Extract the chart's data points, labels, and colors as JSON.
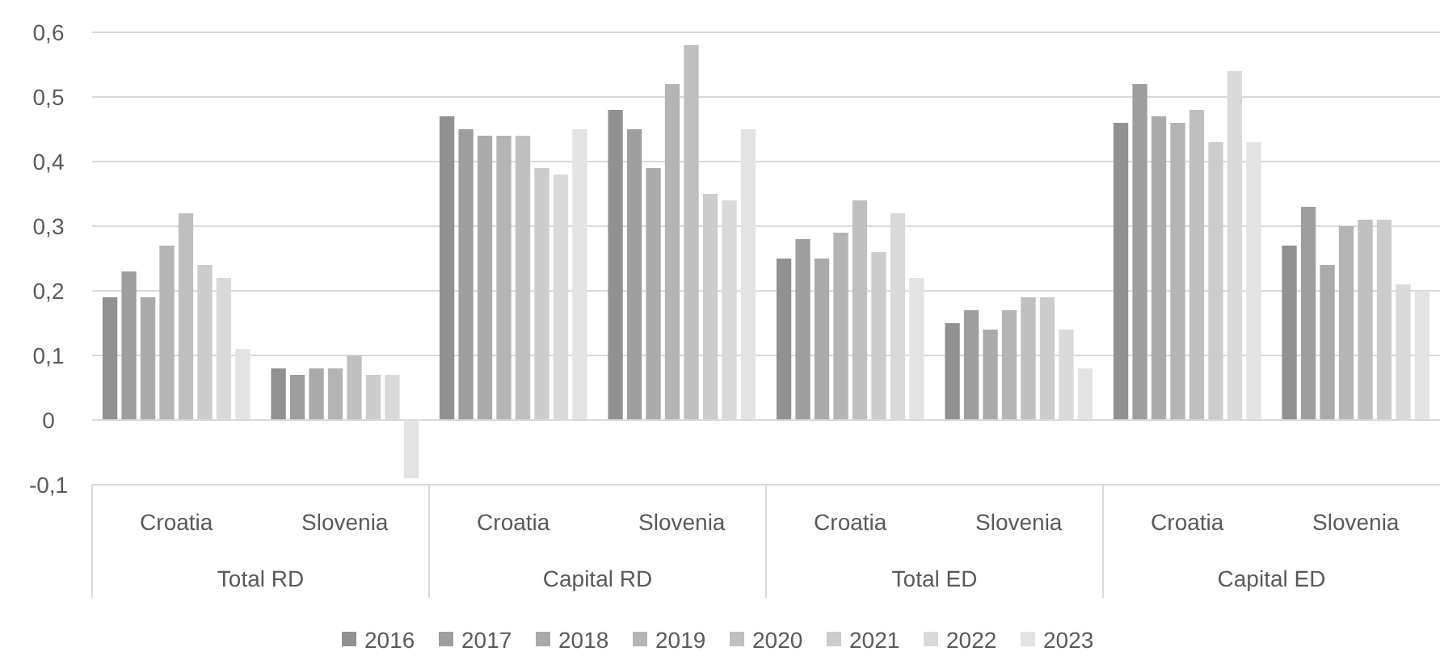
{
  "chart_data": {
    "type": "bar",
    "categories": [
      "Croatia",
      "Slovenia",
      "Croatia",
      "Slovenia",
      "Croatia",
      "Slovenia",
      "Croatia",
      "Slovenia"
    ],
    "annotations": [
      "Total RD",
      "Capital RD",
      "Total ED",
      "Capital ED"
    ],
    "ylim": [
      -0.1,
      0.6
    ],
    "yticks": [
      {
        "value": -0.1,
        "label": "-0,1"
      },
      {
        "value": 0,
        "label": "0"
      },
      {
        "value": 0.1,
        "label": "0,1"
      },
      {
        "value": 0.2,
        "label": "0,2"
      },
      {
        "value": 0.3,
        "label": "0,3"
      },
      {
        "value": 0.4,
        "label": "0,4"
      },
      {
        "value": 0.5,
        "label": "0,5"
      },
      {
        "value": 0.6,
        "label": "0,6"
      }
    ],
    "grid": "y",
    "legend": "bottom",
    "series": [
      {
        "name": "2016",
        "color": "#919191",
        "values": [
          0.19,
          0.08,
          0.47,
          0.48,
          0.25,
          0.15,
          0.46,
          0.27
        ]
      },
      {
        "name": "2017",
        "color": "#9e9e9e",
        "values": [
          0.23,
          0.07,
          0.45,
          0.45,
          0.28,
          0.17,
          0.52,
          0.33
        ]
      },
      {
        "name": "2018",
        "color": "#aaaaaa",
        "values": [
          0.19,
          0.08,
          0.44,
          0.39,
          0.25,
          0.14,
          0.47,
          0.24
        ]
      },
      {
        "name": "2019",
        "color": "#b4b4b4",
        "values": [
          0.27,
          0.08,
          0.44,
          0.52,
          0.29,
          0.17,
          0.46,
          0.3
        ]
      },
      {
        "name": "2020",
        "color": "#bfbfbf",
        "values": [
          0.32,
          0.1,
          0.44,
          0.58,
          0.34,
          0.19,
          0.48,
          0.31
        ]
      },
      {
        "name": "2021",
        "color": "#cccccc",
        "values": [
          0.24,
          0.07,
          0.39,
          0.35,
          0.26,
          0.19,
          0.43,
          0.31
        ]
      },
      {
        "name": "2022",
        "color": "#d9d9d9",
        "values": [
          0.22,
          0.07,
          0.38,
          0.34,
          0.32,
          0.14,
          0.54,
          0.21
        ]
      },
      {
        "name": "2023",
        "color": "#e3e3e3",
        "values": [
          0.11,
          -0.09,
          0.45,
          0.45,
          0.22,
          0.08,
          0.43,
          0.2
        ]
      }
    ]
  }
}
